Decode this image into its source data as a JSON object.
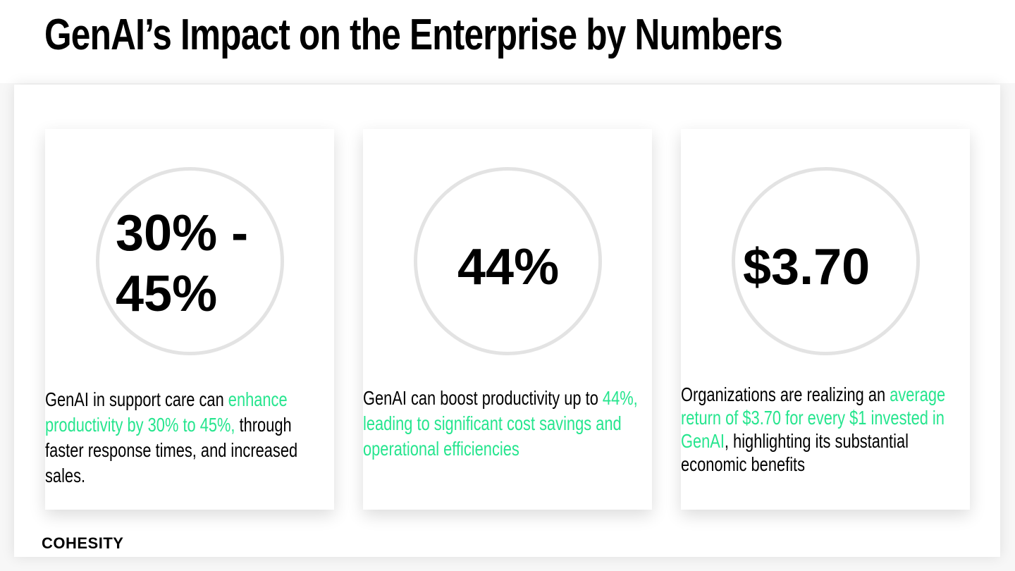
{
  "slide": {
    "title": "GenAI’s Impact on the Enterprise by Numbers",
    "logo_text": "COHESITY"
  },
  "cards": [
    {
      "stat": "30% - 45%",
      "stat_line1": "30% -",
      "stat_line2": "45%",
      "desc_before": "GenAI in support care can ",
      "desc_highlight": "enhance productivity by 30% to 45%,",
      "desc_after": " through faster response times, and increased sales."
    },
    {
      "stat": "44%",
      "desc_before": "GenAI can boost productivity up to ",
      "desc_highlight": "44%, leading to significant cost savings and operational efficiencies",
      "desc_after": ""
    },
    {
      "stat": "$3.70",
      "desc_before": "Organizations are realizing an ",
      "desc_highlight": "average return of $3.70 for every $1 invested in GenAI",
      "desc_after": ", highlighting its substantial economic benefits"
    }
  ],
  "colors": {
    "highlight": "#26e58e",
    "text": "#000000",
    "ring": "#e3e3e3"
  }
}
